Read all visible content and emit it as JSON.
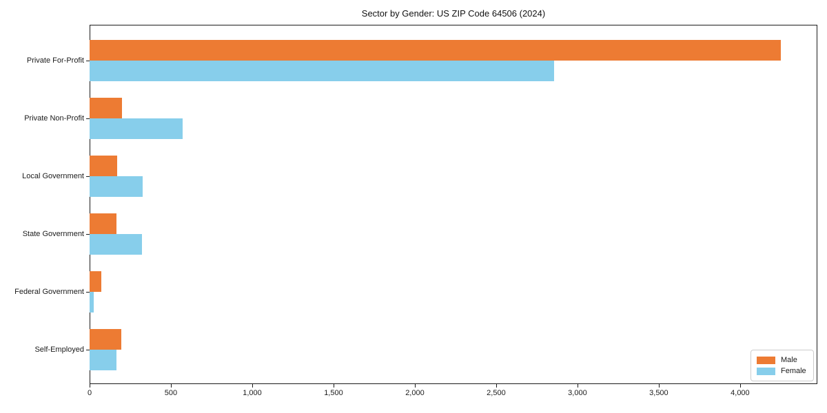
{
  "title": "Sector by Gender: US ZIP Code 64506 (2024)",
  "chart_data": {
    "type": "bar",
    "orientation": "horizontal",
    "title": "Sector by Gender: US ZIP Code 64506 (2024)",
    "xlabel": "",
    "ylabel": "",
    "categories": [
      "Private For-Profit",
      "Private Non-Profit",
      "Local Government",
      "State Government",
      "Federal Government",
      "Self-Employed"
    ],
    "series": [
      {
        "name": "Male",
        "color": "#ED7B33",
        "values": [
          4250,
          200,
          170,
          165,
          70,
          195
        ]
      },
      {
        "name": "Female",
        "color": "#87CEEB",
        "values": [
          2855,
          570,
          325,
          320,
          25,
          165
        ]
      }
    ],
    "xlim": [
      0,
      4475
    ],
    "xticks": [
      0,
      500,
      1000,
      1500,
      2000,
      2500,
      3000,
      3500,
      4000
    ],
    "xtick_labels": [
      "0",
      "500",
      "1,000",
      "1,500",
      "2,000",
      "2,500",
      "3,000",
      "3,500",
      "4,000"
    ],
    "grid": false,
    "legend_position": "lower right",
    "legend_entries": [
      {
        "label": "Male",
        "color": "#ED7B33"
      },
      {
        "label": "Female",
        "color": "#87CEEB"
      }
    ]
  }
}
